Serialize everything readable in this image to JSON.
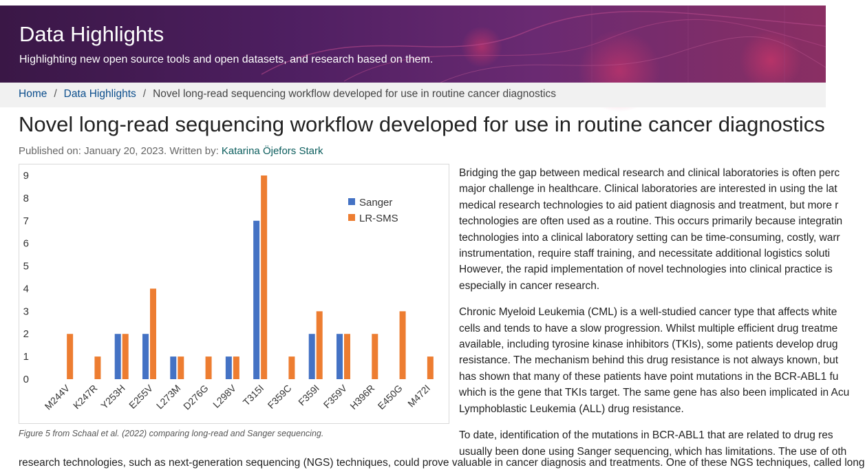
{
  "header": {
    "title": "Data Highlights",
    "subtitle": "Highlighting new open source tools and open datasets, and research based on them."
  },
  "breadcrumb": {
    "home": "Home",
    "section": "Data Highlights",
    "current": "Novel long-read sequencing workflow developed for use in routine cancer diagnostics"
  },
  "article": {
    "title": "Novel long-read sequencing workflow developed for use in routine cancer diagnostics",
    "published_prefix": "Published on: January 20, 2023. Written by: ",
    "author": "Katarina Öjefors Stark",
    "caption": "Figure 5 from Schaal et al. (2022) comparing long-read and Sanger sequencing.",
    "paragraphs": [
      [
        "Bridging the gap between medical research and clinical laboratories is often perc",
        "major challenge in healthcare. Clinical laboratories are interested in using the lat",
        "medical research technologies to aid patient diagnosis and treatment, but more r",
        "technologies are often used as a routine. This occurs primarily because integratin",
        "technologies into a clinical laboratory setting can be time-consuming, costly, warr",
        "instrumentation, require staff training, and necessitate additional logistics soluti",
        "However, the rapid implementation of novel technologies into clinical practice is",
        "especially in cancer research."
      ],
      [
        "Chronic Myeloid Leukemia (CML) is a well-studied cancer type that affects white",
        "cells and tends to have a slow progression. Whilst multiple efficient drug treatme",
        "available, including tyrosine kinase inhibitors (TKIs), some patients develop drug",
        "resistance. The mechanism behind this drug resistance is not always known, but",
        "has shown that many of these patients have point mutations in the BCR-ABL1 fu",
        "which is the gene that TKIs target. The same gene has also been implicated in Acu",
        "Lymphoblastic Leukemia (ALL) drug resistance."
      ],
      [
        "To date, identification of the mutations in BCR-ABL1 that are related to drug res",
        "usually been done using Sanger sequencing, which has limitations. The use of oth"
      ]
    ],
    "bottom_line": "research technologies, such as next-generation sequencing (NGS) techniques, could prove valuable in cancer diagnosis and treatments. One of these NGS techniques, called long"
  },
  "chart_data": {
    "type": "bar",
    "categories": [
      "M244V",
      "K247R",
      "Y253H",
      "E255V",
      "L273M",
      "D276G",
      "L298V",
      "T315I",
      "F359C",
      "F359I",
      "F359V",
      "H396R",
      "E450G",
      "M472I"
    ],
    "series": [
      {
        "name": "Sanger",
        "color": "#4472c4",
        "values": [
          0,
          0,
          2,
          2,
          1,
          0,
          1,
          7,
          0,
          2,
          2,
          0,
          0,
          0
        ]
      },
      {
        "name": "LR-SMS",
        "color": "#ed7d31",
        "values": [
          2,
          1,
          2,
          4,
          1,
          1,
          1,
          9,
          1,
          3,
          2,
          2,
          3,
          1
        ]
      }
    ],
    "ylim": [
      0,
      9
    ],
    "yticks": [
      0,
      1,
      2,
      3,
      4,
      5,
      6,
      7,
      8,
      9
    ],
    "grid": false,
    "legend": "upper-right"
  }
}
